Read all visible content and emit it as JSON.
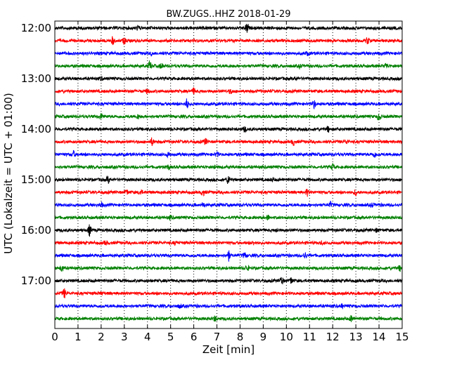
{
  "chart_data": {
    "type": "line",
    "title": "BW.ZUGS..HHZ 2018-01-29",
    "xlabel": "Zeit  [min]",
    "ylabel": "UTC (Lokalzeit = UTC + 01:00)",
    "xlim": [
      0,
      15
    ],
    "x_ticks": [
      "0",
      "1",
      "2",
      "3",
      "4",
      "5",
      "6",
      "7",
      "8",
      "9",
      "10",
      "11",
      "12",
      "13",
      "14",
      "15"
    ],
    "y_ticks": [
      "12:00",
      "13:00",
      "14:00",
      "15:00",
      "16:00",
      "17:00"
    ],
    "grid": "vertical dotted at each minute",
    "trace_colors": [
      "#000000",
      "#ff0000",
      "#0000ff",
      "#008000"
    ],
    "trace_count": 24,
    "trace_interval_min": 15,
    "first_trace_start": "12:00",
    "events": [
      [
        [
          8.3,
          1.0
        ],
        [
          3.6,
          0.4
        ]
      ],
      [
        [
          2.5,
          0.7
        ],
        [
          3.0,
          0.6
        ],
        [
          13.5,
          0.7
        ]
      ],
      [
        [
          4.2,
          0.3
        ],
        [
          10.9,
          0.3
        ]
      ],
      [
        [
          4.1,
          0.9
        ],
        [
          4.6,
          0.6
        ],
        [
          10.6,
          0.3
        ],
        [
          14.3,
          0.5
        ]
      ],
      [
        [
          2.0,
          0.3
        ],
        [
          10.4,
          0.3
        ]
      ],
      [
        [
          4.0,
          0.4
        ],
        [
          6.0,
          0.5
        ],
        [
          7.6,
          0.4
        ]
      ],
      [
        [
          5.7,
          0.9
        ],
        [
          11.2,
          0.8
        ]
      ],
      [
        [
          2.0,
          0.5
        ],
        [
          3.6,
          0.4
        ],
        [
          14.0,
          0.8
        ]
      ],
      [
        [
          8.2,
          0.5
        ],
        [
          11.8,
          0.5
        ]
      ],
      [
        [
          4.2,
          0.7
        ],
        [
          6.5,
          0.6
        ],
        [
          10.3,
          0.6
        ],
        [
          12.6,
          0.3
        ]
      ],
      [
        [
          0.8,
          0.6
        ],
        [
          4.9,
          0.4
        ],
        [
          7.0,
          0.4
        ],
        [
          13.8,
          0.5
        ]
      ],
      [
        [
          4.9,
          0.4
        ],
        [
          6.9,
          0.4
        ],
        [
          12.0,
          0.5
        ]
      ],
      [
        [
          2.3,
          0.6
        ],
        [
          7.5,
          0.9
        ],
        [
          9.4,
          0.3
        ]
      ],
      [
        [
          3.1,
          0.5
        ],
        [
          3.7,
          0.5
        ],
        [
          6.4,
          0.6
        ],
        [
          10.9,
          0.6
        ],
        [
          13.0,
          0.6
        ]
      ],
      [
        [
          2.0,
          0.4
        ],
        [
          6.4,
          0.4
        ],
        [
          11.9,
          0.5
        ],
        [
          13.7,
          0.4
        ]
      ],
      [
        [
          5.0,
          0.3
        ],
        [
          9.2,
          0.4
        ]
      ],
      [
        [
          1.5,
          1.0
        ],
        [
          9.6,
          0.3
        ],
        [
          13.9,
          0.3
        ]
      ],
      [
        [
          2.2,
          0.3
        ],
        [
          5.2,
          0.3
        ],
        [
          8.6,
          0.3
        ],
        [
          11.5,
          0.3
        ]
      ],
      [
        [
          7.5,
          1.0
        ],
        [
          8.2,
          0.5
        ],
        [
          10.8,
          0.6
        ]
      ],
      [
        [
          0.3,
          0.6
        ],
        [
          8.3,
          0.6
        ],
        [
          14.9,
          0.5
        ]
      ],
      [
        [
          9.8,
          0.8
        ],
        [
          10.2,
          0.6
        ]
      ],
      [
        [
          0.4,
          0.9
        ],
        [
          2.0,
          0.2
        ]
      ],
      [
        [
          5.4,
          0.3
        ],
        [
          12.4,
          0.3
        ]
      ],
      [
        [
          6.9,
          0.5
        ],
        [
          12.8,
          0.6
        ]
      ]
    ]
  }
}
